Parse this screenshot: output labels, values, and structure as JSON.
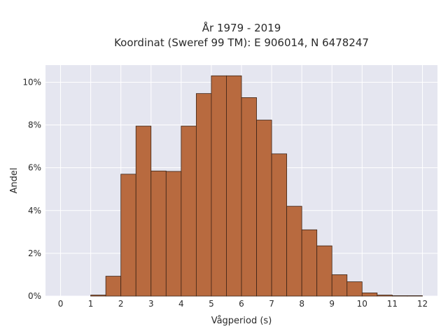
{
  "chart_data": {
    "type": "bar",
    "title": "År 1979 - 2019",
    "subtitle": "Koordinat (Sweref 99 TM): E 906014, N 6478247",
    "xlabel": "Vågperiod (s)",
    "ylabel": "Andel",
    "xlim": [
      -0.5,
      12.5
    ],
    "ylim": [
      0,
      10.8
    ],
    "x_ticks": [
      "0",
      "1",
      "2",
      "3",
      "4",
      "5",
      "6",
      "7",
      "8",
      "9",
      "10",
      "11",
      "12"
    ],
    "y_ticks": [
      "0%",
      "2%",
      "4%",
      "6%",
      "8%",
      "10%"
    ],
    "bin_width": 0.5,
    "bins": [
      {
        "start": 1.0,
        "value": 0.05
      },
      {
        "start": 1.5,
        "value": 0.93
      },
      {
        "start": 2.0,
        "value": 5.7
      },
      {
        "start": 2.5,
        "value": 7.95
      },
      {
        "start": 3.0,
        "value": 5.85
      },
      {
        "start": 3.5,
        "value": 5.83
      },
      {
        "start": 4.0,
        "value": 7.95
      },
      {
        "start": 4.5,
        "value": 9.47
      },
      {
        "start": 5.0,
        "value": 10.3
      },
      {
        "start": 5.5,
        "value": 10.3
      },
      {
        "start": 6.0,
        "value": 9.28
      },
      {
        "start": 6.5,
        "value": 8.23
      },
      {
        "start": 7.0,
        "value": 6.65
      },
      {
        "start": 7.5,
        "value": 4.2
      },
      {
        "start": 8.0,
        "value": 3.1
      },
      {
        "start": 8.5,
        "value": 2.35
      },
      {
        "start": 9.0,
        "value": 1.0
      },
      {
        "start": 9.5,
        "value": 0.67
      },
      {
        "start": 10.0,
        "value": 0.15
      },
      {
        "start": 10.5,
        "value": 0.05
      },
      {
        "start": 11.0,
        "value": 0.02
      },
      {
        "start": 11.5,
        "value": 0.02
      }
    ],
    "grid": true,
    "colors": {
      "bar_fill": "#b86a3f",
      "bar_edge": "#3b2316",
      "plot_bg": "#e5e6f0",
      "grid": "#ffffff"
    }
  }
}
